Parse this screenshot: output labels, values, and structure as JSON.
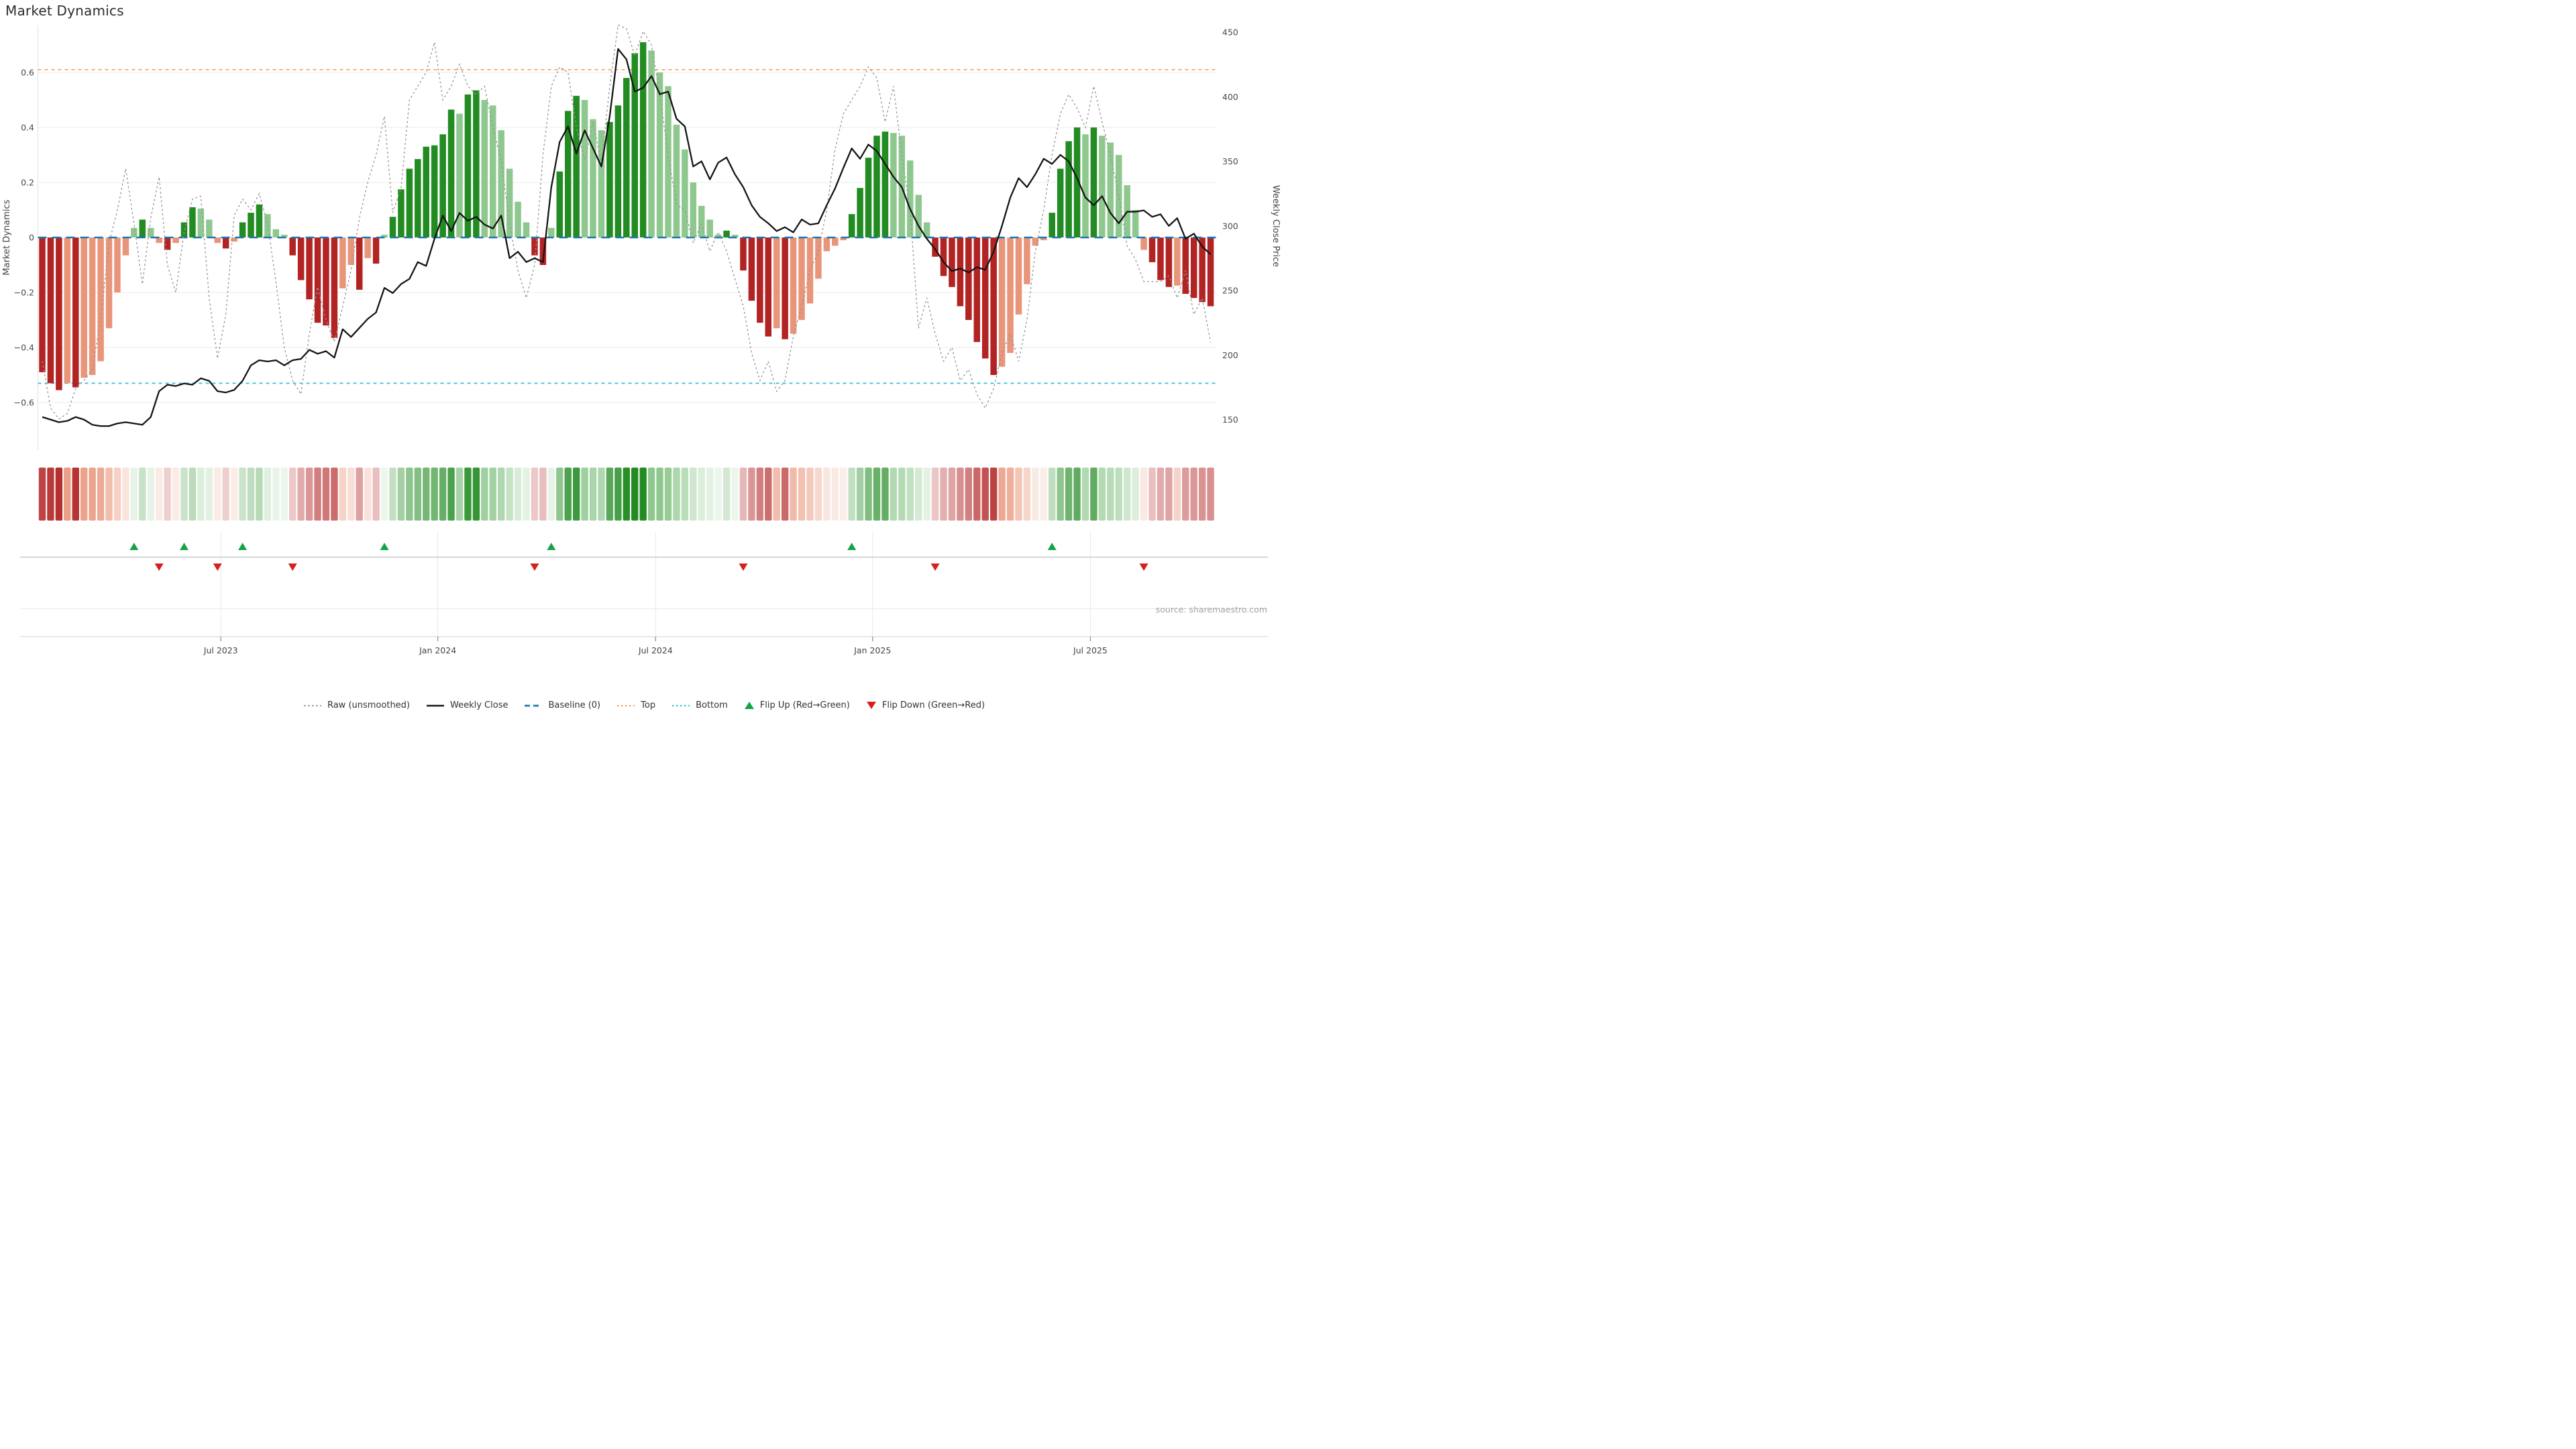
{
  "title": "Market Dynamics",
  "source": "source: sharemaestro.com",
  "axes": {
    "left": {
      "label": "Market Dynamics",
      "ticks": [
        0.6,
        0.4,
        0.2,
        0,
        -0.2,
        -0.4,
        -0.6
      ],
      "range": [
        -0.772,
        0.772
      ]
    },
    "right": {
      "label": "Weekly Close Price",
      "ticks": [
        450,
        400,
        350,
        300,
        250,
        200,
        150
      ],
      "range": [
        125,
        475
      ]
    },
    "x": {
      "ticks": [
        {
          "label": "Jul 2023",
          "week": 21.4
        },
        {
          "label": "Jan 2024",
          "week": 47.4
        },
        {
          "label": "Jul 2024",
          "week": 73.5
        },
        {
          "label": "Jan 2025",
          "week": 99.5
        },
        {
          "label": "Jul 2025",
          "week": 125.6
        }
      ]
    }
  },
  "legend": [
    {
      "key": "raw",
      "label": "Raw (unsmoothed)"
    },
    {
      "key": "close",
      "label": "Weekly Close"
    },
    {
      "key": "baseline",
      "label": "Baseline (0)"
    },
    {
      "key": "top",
      "label": "Top"
    },
    {
      "key": "bottom",
      "label": "Bottom"
    },
    {
      "key": "flipup",
      "label": "Flip Up (Red→Green)"
    },
    {
      "key": "flipdown",
      "label": "Flip Down (Green→Red)"
    }
  ],
  "colors": {
    "bar_pos_strong": "#228b22",
    "bar_pos_weak": "#8fc88f",
    "bar_neg_strong": "#b22323",
    "bar_neg_weak": "#e8957a",
    "price_line": "#141414",
    "raw_line": "#969696",
    "baseline": "#1f77b4",
    "top_line": "#f2a76a",
    "bottom_line": "#3fc1df",
    "flip_up": "#16a348",
    "flip_down": "#d62020",
    "grid": "#ebebeb",
    "spine": "#e0e0e0",
    "panel_divider": "#c9c9c9",
    "panel_grid": "#e9e9e9",
    "axis_line": "#dcdcdc",
    "tick_text": "#4a4a4a",
    "label_text": "#444444"
  },
  "chart_data": {
    "type": "combo-bar-line",
    "x_unit": "week_index",
    "n_points": 141,
    "title": "Market Dynamics",
    "ylabel_left": "Market Dynamics",
    "ylabel_right": "Weekly Close Price",
    "grid": "horizontal",
    "legend_position": "bottom-center",
    "series": [
      {
        "name": "Market Dynamics",
        "type": "bar",
        "axis": "left",
        "values": [
          -0.49,
          -0.53,
          -0.555,
          -0.53,
          -0.545,
          -0.51,
          -0.5,
          -0.45,
          -0.33,
          -0.2,
          -0.065,
          0.035,
          0.065,
          0.035,
          -0.02,
          -0.045,
          -0.02,
          0.055,
          0.11,
          0.105,
          0.065,
          -0.02,
          -0.04,
          -0.015,
          0.055,
          0.09,
          0.12,
          0.085,
          0.03,
          0.01,
          -0.065,
          -0.155,
          -0.225,
          -0.31,
          -0.32,
          -0.365,
          -0.185,
          -0.1,
          -0.19,
          -0.075,
          -0.095,
          0.01,
          0.075,
          0.175,
          0.25,
          0.285,
          0.33,
          0.335,
          0.375,
          0.465,
          0.45,
          0.52,
          0.535,
          0.5,
          0.48,
          0.39,
          0.25,
          0.13,
          0.055,
          -0.065,
          -0.1,
          0.035,
          0.24,
          0.46,
          0.515,
          0.5,
          0.43,
          0.39,
          0.42,
          0.48,
          0.58,
          0.67,
          0.71,
          0.68,
          0.6,
          0.55,
          0.41,
          0.32,
          0.2,
          0.115,
          0.065,
          0.01,
          0.025,
          0.01,
          -0.12,
          -0.23,
          -0.31,
          -0.36,
          -0.33,
          -0.37,
          -0.35,
          -0.3,
          -0.24,
          -0.15,
          -0.05,
          -0.03,
          -0.01,
          0.085,
          0.18,
          0.29,
          0.37,
          0.385,
          0.38,
          0.37,
          0.28,
          0.155,
          0.055,
          -0.07,
          -0.14,
          -0.18,
          -0.25,
          -0.3,
          -0.38,
          -0.44,
          -0.5,
          -0.47,
          -0.42,
          -0.28,
          -0.17,
          -0.03,
          -0.01,
          0.09,
          0.25,
          0.35,
          0.4,
          0.375,
          0.4,
          0.37,
          0.345,
          0.3,
          0.19,
          0.1,
          -0.045,
          -0.09,
          -0.155,
          -0.18,
          -0.175,
          -0.205,
          -0.22,
          -0.235,
          -0.25
        ]
      },
      {
        "name": "Raw (unsmoothed)",
        "type": "line",
        "style": "dotted",
        "axis": "left",
        "values": [
          -0.45,
          -0.62,
          -0.66,
          -0.64,
          -0.55,
          -0.52,
          -0.48,
          -0.3,
          -0.02,
          0.1,
          0.25,
          0.05,
          -0.17,
          0.07,
          0.22,
          -0.1,
          -0.2,
          0.02,
          0.14,
          0.15,
          -0.22,
          -0.44,
          -0.28,
          0.08,
          0.14,
          0.1,
          0.16,
          0.05,
          -0.16,
          -0.4,
          -0.52,
          -0.57,
          -0.35,
          -0.18,
          -0.3,
          -0.38,
          -0.25,
          -0.12,
          0.07,
          0.2,
          0.3,
          0.44,
          0.09,
          0.18,
          0.5,
          0.55,
          0.6,
          0.71,
          0.5,
          0.55,
          0.63,
          0.55,
          0.52,
          0.55,
          0.4,
          0.28,
          0.05,
          -0.12,
          -0.22,
          -0.1,
          0.3,
          0.55,
          0.62,
          0.6,
          0.4,
          0.28,
          0.42,
          0.27,
          0.55,
          0.78,
          0.76,
          0.66,
          0.75,
          0.7,
          0.52,
          0.3,
          0.12,
          0.1,
          -0.02,
          0.05,
          -0.05,
          0.02,
          -0.05,
          -0.15,
          -0.25,
          -0.42,
          -0.52,
          -0.45,
          -0.56,
          -0.52,
          -0.36,
          -0.25,
          -0.12,
          -0.05,
          0.1,
          0.32,
          0.45,
          0.5,
          0.55,
          0.62,
          0.58,
          0.42,
          0.55,
          0.3,
          0.1,
          -0.33,
          -0.22,
          -0.35,
          -0.45,
          -0.4,
          -0.52,
          -0.48,
          -0.57,
          -0.62,
          -0.55,
          -0.42,
          -0.35,
          -0.45,
          -0.3,
          -0.05,
          0.1,
          0.3,
          0.45,
          0.52,
          0.47,
          0.4,
          0.55,
          0.42,
          0.3,
          0.15,
          -0.03,
          -0.08,
          -0.16,
          -0.16,
          -0.16,
          -0.14,
          -0.22,
          -0.12,
          -0.28,
          -0.22,
          -0.38
        ]
      },
      {
        "name": "Weekly Close",
        "type": "line",
        "style": "solid",
        "axis": "right",
        "values": [
          152,
          150,
          148,
          149,
          152,
          150,
          146,
          145,
          145,
          147,
          148,
          147,
          146,
          152,
          172,
          177,
          176,
          178,
          177,
          182,
          180,
          172,
          171,
          173,
          180,
          192,
          196,
          195,
          196,
          192,
          196,
          197,
          204,
          201,
          203,
          198,
          220,
          214,
          221,
          228,
          233,
          252,
          248,
          255,
          259,
          272,
          269,
          290,
          308,
          296,
          310,
          304,
          307,
          301,
          298,
          308,
          275,
          280,
          272,
          275,
          272,
          330,
          365,
          377,
          356,
          374,
          360,
          346,
          385,
          437,
          429,
          404,
          407,
          416,
          402,
          404,
          383,
          377,
          346,
          350,
          336,
          349,
          353,
          340,
          330,
          316,
          307,
          302,
          296,
          299,
          295,
          305,
          301,
          302,
          316,
          329,
          345,
          360,
          352,
          363,
          358,
          348,
          338,
          330,
          313,
          300,
          290,
          282,
          272,
          265,
          267,
          264,
          268,
          266,
          280,
          300,
          322,
          337,
          330,
          340,
          352,
          348,
          355,
          350,
          337,
          322,
          316,
          323,
          310,
          302,
          311,
          311,
          312,
          307,
          309,
          300,
          306,
          290,
          294,
          284,
          278
        ]
      }
    ],
    "reference_lines": [
      {
        "name": "Baseline (0)",
        "axis": "left",
        "value": 0,
        "style": "dashed"
      },
      {
        "name": "Top",
        "axis": "left",
        "value": 0.61,
        "style": "dotted"
      },
      {
        "name": "Bottom",
        "axis": "left",
        "value": -0.53,
        "style": "dotted"
      }
    ],
    "flip_up_weeks": [
      11,
      17,
      24,
      41,
      61,
      97,
      121
    ],
    "flip_down_weeks": [
      14,
      21,
      30,
      59,
      84,
      107,
      132
    ],
    "heatmap": {
      "note": "strip mirrors bar sign/strength as color intensity"
    }
  }
}
